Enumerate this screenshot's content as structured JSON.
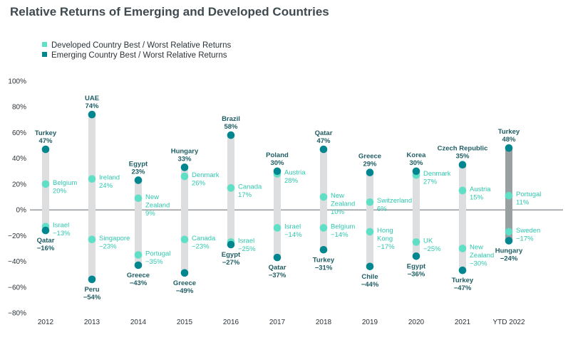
{
  "chart_data": {
    "type": "range",
    "title": "Relative Returns of Emerging and Developed Countries",
    "legend": [
      {
        "name": "Developed Country Best / Worst Relative Returns",
        "color": "#5fe0c6"
      },
      {
        "name": "Emerging Country Best / Worst Relative Returns",
        "color": "#00868f"
      }
    ],
    "legend_position": "top-left",
    "ylim": [
      -80,
      100
    ],
    "yticks": [
      100,
      80,
      60,
      40,
      20,
      0,
      -20,
      -40,
      -60,
      -80
    ],
    "ytick_labels": [
      "100%",
      "80%",
      "60%",
      "40%",
      "20%",
      "0%",
      "−20%",
      "−40%",
      "−60%",
      "−80%"
    ],
    "grid": false,
    "colors": {
      "developed": "#5fe0c6",
      "emerging": "#00868f",
      "range_bar": "#dcdedf",
      "range_bar_ytd": "#9a9fa2",
      "axis_text": "#2b3338"
    },
    "categories": [
      "2012",
      "2013",
      "2014",
      "2015",
      "2016",
      "2017",
      "2018",
      "2019",
      "2020",
      "2021",
      "YTD 2022"
    ],
    "emerging": [
      {
        "best": {
          "country": "Turkey",
          "value": 47,
          "label": "47%"
        },
        "worst": {
          "country": "Qatar",
          "value": -16,
          "label": "−16%"
        }
      },
      {
        "best": {
          "country": "UAE",
          "value": 74,
          "label": "74%"
        },
        "worst": {
          "country": "Peru",
          "value": -54,
          "label": "−54%"
        }
      },
      {
        "best": {
          "country": "Egypt",
          "value": 23,
          "label": "23%"
        },
        "worst": {
          "country": "Greece",
          "value": -43,
          "label": "−43%"
        }
      },
      {
        "best": {
          "country": "Hungary",
          "value": 33,
          "label": "33%"
        },
        "worst": {
          "country": "Greece",
          "value": -49,
          "label": "−49%"
        }
      },
      {
        "best": {
          "country": "Brazil",
          "value": 58,
          "label": "58%"
        },
        "worst": {
          "country": "Egypt",
          "value": -27,
          "label": "−27%"
        }
      },
      {
        "best": {
          "country": "Poland",
          "value": 30,
          "label": "30%"
        },
        "worst": {
          "country": "Qatar",
          "value": -37,
          "label": "−37%"
        }
      },
      {
        "best": {
          "country": "Qatar",
          "value": 47,
          "label": "47%"
        },
        "worst": {
          "country": "Turkey",
          "value": -31,
          "label": "−31%"
        }
      },
      {
        "best": {
          "country": "Greece",
          "value": 29,
          "label": "29%"
        },
        "worst": {
          "country": "Chile",
          "value": -44,
          "label": "−44%"
        }
      },
      {
        "best": {
          "country": "Korea",
          "value": 30,
          "label": "30%"
        },
        "worst": {
          "country": "Egypt",
          "value": -36,
          "label": "−36%"
        }
      },
      {
        "best": {
          "country": "Czech Republic",
          "value": 35,
          "label": "35%"
        },
        "worst": {
          "country": "Turkey",
          "value": -47,
          "label": "−47%"
        }
      },
      {
        "best": {
          "country": "Turkey",
          "value": 48,
          "label": "48%"
        },
        "worst": {
          "country": "Hungary",
          "value": -24,
          "label": "−24%"
        }
      }
    ],
    "developed": [
      {
        "best": {
          "country": "Belgium",
          "value": 20,
          "label": "20%"
        },
        "worst": {
          "country": "Israel",
          "value": -13,
          "label": "−13%"
        }
      },
      {
        "best": {
          "country": "Ireland",
          "value": 24,
          "label": "24%"
        },
        "worst": {
          "country": "Singapore",
          "value": -23,
          "label": "−23%"
        }
      },
      {
        "best": {
          "country": "New Zealand",
          "value": 9,
          "label": "9%"
        },
        "worst": {
          "country": "Portugal",
          "value": -35,
          "label": "−35%"
        }
      },
      {
        "best": {
          "country": "Denmark",
          "value": 26,
          "label": "26%"
        },
        "worst": {
          "country": "Canada",
          "value": -23,
          "label": "−23%"
        }
      },
      {
        "best": {
          "country": "Canada",
          "value": 17,
          "label": "17%"
        },
        "worst": {
          "country": "Israel",
          "value": -25,
          "label": "−25%"
        }
      },
      {
        "best": {
          "country": "Austria",
          "value": 28,
          "label": "28%"
        },
        "worst": {
          "country": "Israel",
          "value": -14,
          "label": "−14%"
        }
      },
      {
        "best": {
          "country": "New Zealand",
          "value": 10,
          "label": "10%"
        },
        "worst": {
          "country": "Belgium",
          "value": -14,
          "label": "−14%"
        }
      },
      {
        "best": {
          "country": "Switzerland",
          "value": 6,
          "label": "6%"
        },
        "worst": {
          "country": "Hong Kong",
          "value": -17,
          "label": "−17%"
        }
      },
      {
        "best": {
          "country": "Denmark",
          "value": 27,
          "label": "27%"
        },
        "worst": {
          "country": "UK",
          "value": -25,
          "label": "−25%"
        }
      },
      {
        "best": {
          "country": "Austria",
          "value": 15,
          "label": "15%"
        },
        "worst": {
          "country": "New Zealand",
          "value": -30,
          "label": "−30%"
        }
      },
      {
        "best": {
          "country": "Portugal",
          "value": 11,
          "label": "11%"
        },
        "worst": {
          "country": "Sweden",
          "value": -17,
          "label": "−17%"
        }
      }
    ]
  }
}
